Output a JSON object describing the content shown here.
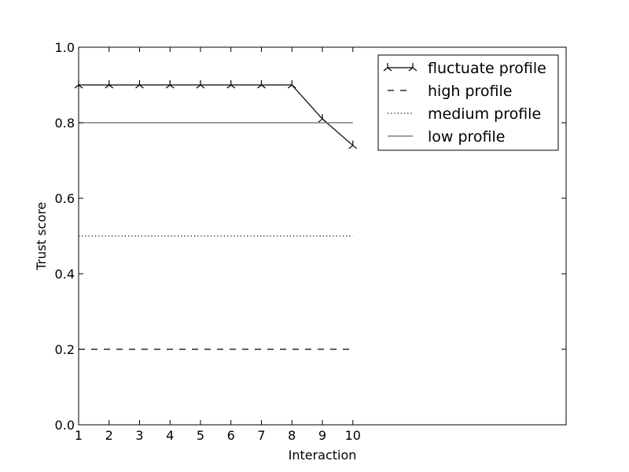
{
  "chart_data": {
    "type": "line",
    "xlabel": "Interaction",
    "ylabel": "Trust score",
    "xlim": [
      1,
      17
    ],
    "ylim": [
      0,
      1.0
    ],
    "x_ticks": [
      1,
      2,
      3,
      4,
      5,
      6,
      7,
      8,
      9,
      10
    ],
    "y_ticks": [
      0.0,
      0.2,
      0.4,
      0.6,
      0.8,
      1.0
    ],
    "x_tick_labels": [
      "1",
      "2",
      "3",
      "4",
      "5",
      "6",
      "7",
      "8",
      "9",
      "10"
    ],
    "y_tick_labels": [
      "0.0",
      "0.2",
      "0.4",
      "0.6",
      "0.8",
      "1.0"
    ],
    "grid": false,
    "legend_position": "top-right",
    "series": [
      {
        "name": "fluctuate profile",
        "style": "solid",
        "marker": "tri-down",
        "color": "#000000",
        "x": [
          1,
          2,
          3,
          4,
          5,
          6,
          7,
          8,
          9,
          10
        ],
        "values": [
          0.9,
          0.9,
          0.9,
          0.9,
          0.9,
          0.9,
          0.9,
          0.9,
          0.81,
          0.74
        ]
      },
      {
        "name": "high profile",
        "style": "dashed",
        "marker": "none",
        "color": "#000000",
        "x": [
          1,
          10
        ],
        "values": [
          0.2,
          0.2
        ]
      },
      {
        "name": "medium profile",
        "style": "dotted",
        "marker": "none",
        "color": "#000000",
        "x": [
          1,
          10
        ],
        "values": [
          0.5,
          0.5
        ]
      },
      {
        "name": "low profile",
        "style": "solid",
        "marker": "none",
        "color": "#666666",
        "x": [
          1,
          10
        ],
        "values": [
          0.8,
          0.8
        ]
      }
    ]
  }
}
